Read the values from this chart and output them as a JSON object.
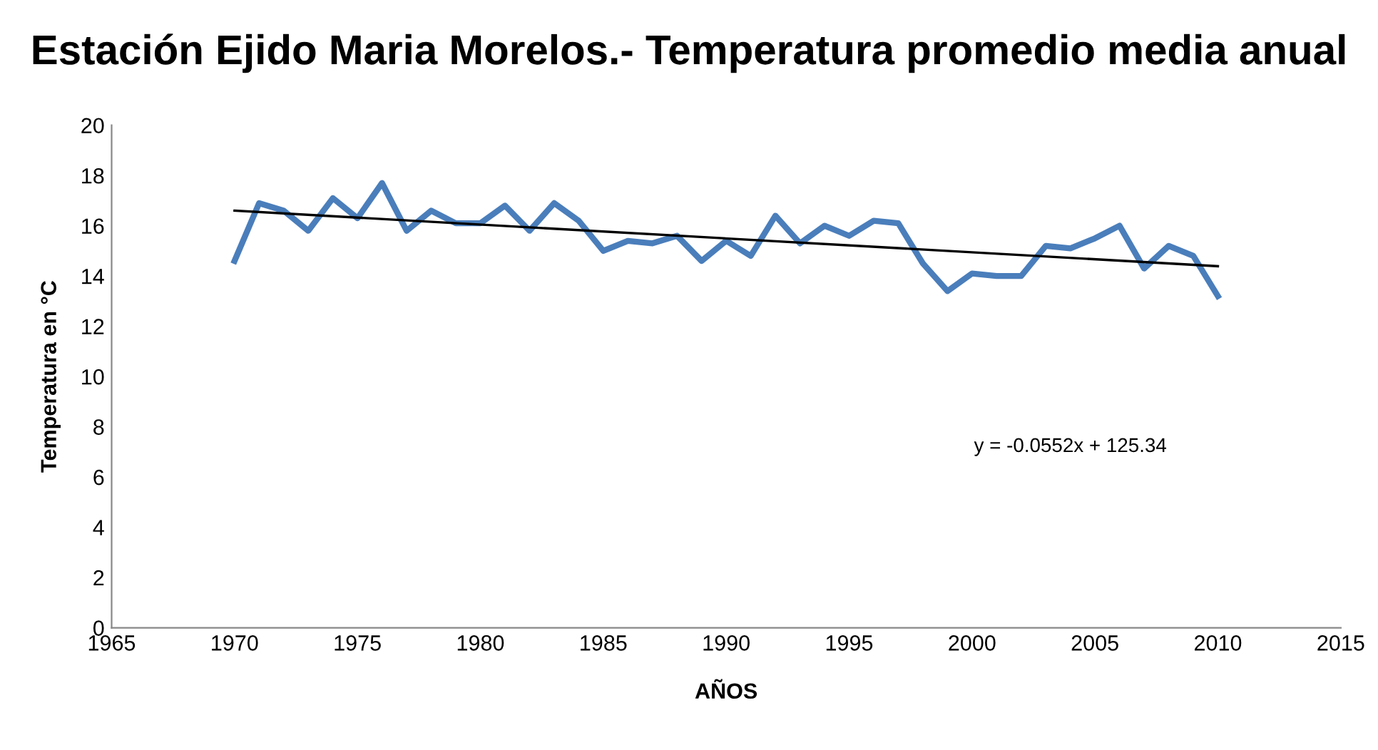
{
  "chart_data": {
    "type": "line",
    "title": "Estación Ejido Maria Morelos.- Temperatura promedio media anual",
    "xlabel": "AÑOS",
    "ylabel": "Temperatura en °C",
    "x": [
      1970,
      1971,
      1972,
      1973,
      1974,
      1975,
      1976,
      1977,
      1978,
      1979,
      1980,
      1981,
      1982,
      1983,
      1984,
      1985,
      1986,
      1987,
      1988,
      1989,
      1990,
      1991,
      1992,
      1993,
      1994,
      1995,
      1996,
      1997,
      1998,
      1999,
      2000,
      2001,
      2002,
      2003,
      2004,
      2005,
      2006,
      2007,
      2008,
      2009,
      2010
    ],
    "series": [
      {
        "color": "#4a7ebb",
        "values": [
          14.6,
          16.9,
          16.6,
          15.8,
          17.1,
          16.3,
          17.7,
          15.8,
          16.6,
          16.1,
          16.1,
          16.8,
          15.8,
          16.9,
          16.2,
          15.0,
          15.4,
          15.3,
          15.6,
          14.6,
          15.4,
          14.8,
          16.4,
          15.3,
          16.0,
          15.6,
          16.2,
          16.1,
          14.5,
          13.4,
          14.1,
          14.0,
          14.0,
          15.2,
          15.1,
          15.5,
          16.0,
          14.3,
          15.2,
          14.8,
          13.2
        ]
      },
      {
        "color": "#000000",
        "x": [
          1970,
          2010
        ],
        "values": [
          16.6,
          14.39
        ]
      }
    ],
    "annotations": [
      "y = -0.0552x + 125.34"
    ],
    "xlim": [
      1965,
      2015
    ],
    "xticks": [
      1965,
      1970,
      1975,
      1980,
      1985,
      1990,
      1995,
      2000,
      2005,
      2010,
      2015
    ],
    "ylim": [
      0,
      20
    ],
    "yticks": [
      0,
      2,
      4,
      6,
      8,
      10,
      12,
      14,
      16,
      18,
      20
    ],
    "grid": false,
    "legend": false
  }
}
